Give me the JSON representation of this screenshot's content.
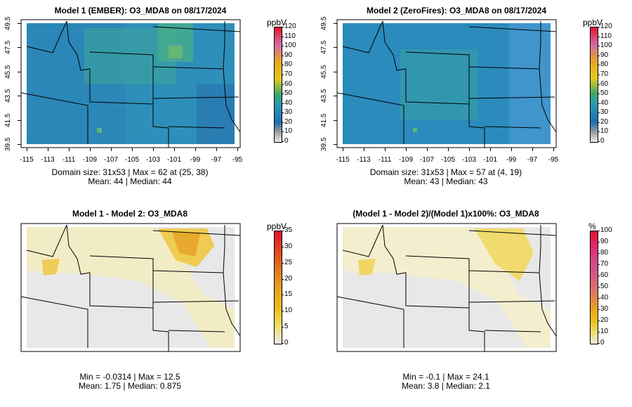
{
  "panels": [
    {
      "title": "Model 1 (EMBER): O3_MDA8 on 08/17/2024",
      "unit": "ppbV",
      "scale": {
        "min": 0,
        "max": 120,
        "ticks": [
          0,
          10,
          20,
          30,
          40,
          50,
          60,
          70,
          80,
          90,
          100,
          110,
          120
        ]
      },
      "stats_line1": "Domain size: 31x53 | Max = 62 at (25, 38)",
      "stats_line2": "Mean: 44 |  Median: 44",
      "axes": true
    },
    {
      "title": "Model 2 (ZeroFires): O3_MDA8 on 08/17/2024",
      "unit": "ppbV",
      "scale": {
        "min": 0,
        "max": 120,
        "ticks": [
          0,
          10,
          20,
          30,
          40,
          50,
          60,
          70,
          80,
          90,
          100,
          110,
          120
        ]
      },
      "stats_line1": "Domain size: 31x53 | Max = 57 at (4, 19)",
      "stats_line2": "Mean: 43 |  Median: 43",
      "axes": true
    },
    {
      "title": "Model 1 - Model 2: O3_MDA8",
      "unit": "ppbV",
      "scale": {
        "min": 0,
        "max": 35,
        "ticks": [
          0,
          5,
          10,
          15,
          20,
          25,
          30,
          35
        ]
      },
      "stats_line1": "Min = -0.0314 | Max = 12.5",
      "stats_line2": "Mean: 1.75 |  Median: 0.875",
      "axes": false
    },
    {
      "title": "(Model 1 - Model 2)/(Model 1)x100%: O3_MDA8",
      "unit": "%",
      "scale": {
        "min": 0,
        "max": 100,
        "ticks": [
          0,
          10,
          20,
          30,
          40,
          50,
          60,
          70,
          80,
          90,
          100
        ]
      },
      "stats_line1": "Min = -0.1 | Max = 24.1",
      "stats_line2": "Mean: 3.8 |  Median: 2.1",
      "axes": false
    }
  ],
  "x_ticks": [
    "-115",
    "-113",
    "-111",
    "-109",
    "-107",
    "-105",
    "-103",
    "-101",
    "-99",
    "-97",
    "-95"
  ],
  "y_ticks": [
    "39.5",
    "41.5",
    "43.5",
    "45.5",
    "47.5",
    "49.5"
  ]
}
